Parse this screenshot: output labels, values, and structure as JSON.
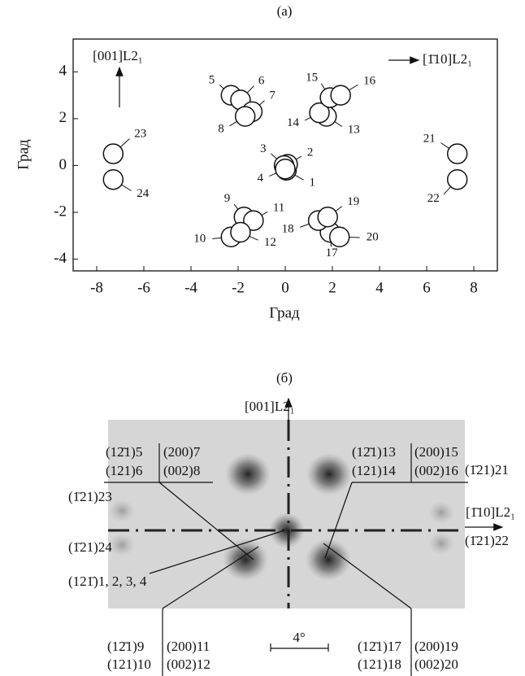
{
  "chart_data": {
    "type": "scatter",
    "title": "(a)",
    "x_label": "Град",
    "y_label": "Град",
    "x": [
      0.05,
      0.1,
      -0.05,
      0,
      -2.3,
      -1.9,
      -1.4,
      -1.7,
      -1.75,
      -2.3,
      -1.35,
      -1.9,
      1.75,
      1.45,
      1.9,
      2.35,
      1.9,
      1.4,
      1.8,
      2.3,
      7.3,
      7.3,
      -7.3,
      -7.3
    ],
    "values": [
      -0.2,
      0.05,
      0,
      -0.15,
      3.0,
      2.8,
      2.3,
      2.1,
      -2.2,
      -3.05,
      -2.35,
      -2.85,
      2.1,
      2.25,
      2.9,
      3.0,
      -2.85,
      -2.35,
      -2.2,
      -3.05,
      0.5,
      -0.6,
      0.5,
      -0.6
    ],
    "labels": [
      "1",
      "2",
      "3",
      "4",
      "5",
      "6",
      "7",
      "8",
      "9",
      "10",
      "11",
      "12",
      "13",
      "14",
      "15",
      "16",
      "17",
      "18",
      "19",
      "20",
      "21",
      "22",
      "23",
      "24"
    ],
    "xlim": [
      -9,
      9
    ],
    "ylim": [
      -4.5,
      5.4
    ],
    "xticks": [
      -8,
      -6,
      -4,
      -2,
      0,
      2,
      4,
      6,
      8
    ],
    "yticks": [
      -4,
      -2,
      0,
      2,
      4
    ],
    "color": "#ffffff",
    "annotations": [
      "[001]L2₁",
      "[1̄10]L2₁"
    ]
  },
  "panel_b": {
    "title": "(б)",
    "axis_up": "[001]L2₁",
    "axis_right": "[1̄10]L2₁",
    "scale": "4°",
    "labels": [
      "(12̄1)5",
      "(121)6",
      "(200)7",
      "(002)8",
      "(12̄1)13",
      "(121)14",
      "(200)15",
      "(002)16",
      "(1̄21)21",
      "(1̄21)22",
      "(1̄21)23",
      "(1̄21)24",
      "(121̄)1, 2, 3, 4",
      "(12̄1)9",
      "(121)10",
      "(200)11",
      "(002)12",
      "(12̄1)17",
      "(121)18",
      "(200)19",
      "(002)20"
    ]
  }
}
